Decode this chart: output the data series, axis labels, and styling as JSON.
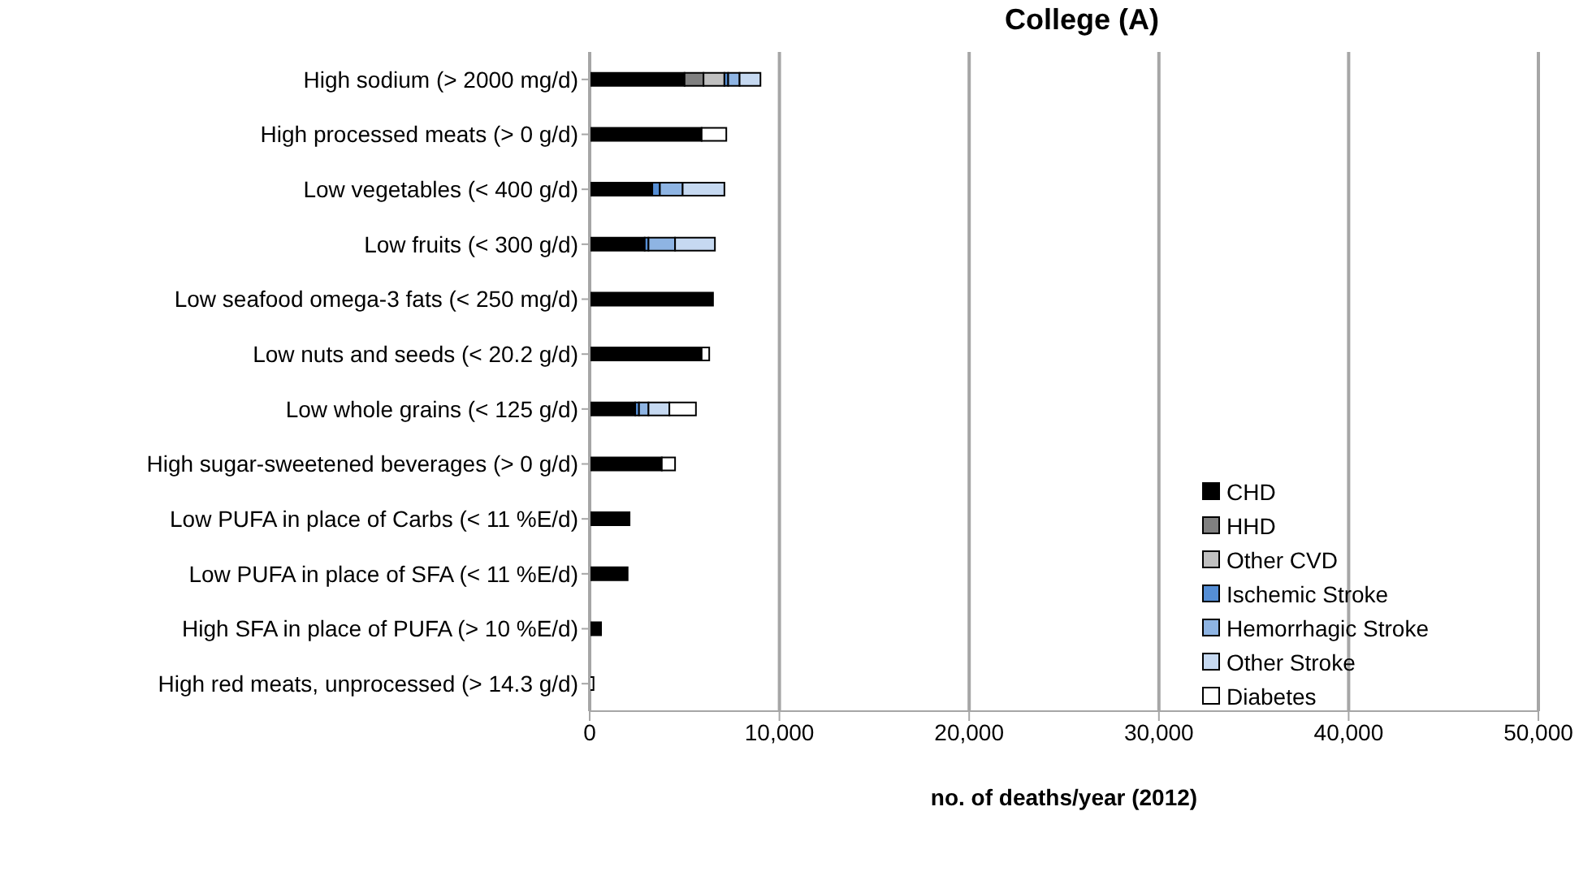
{
  "chart_data": {
    "type": "bar",
    "orientation": "horizontal",
    "stacked": true,
    "title": "College (A)",
    "xlabel": "no. of deaths/year (2012)",
    "categories": [
      "High sodium (> 2000 mg/d)",
      "High processed meats (> 0 g/d)",
      "Low vegetables (< 400 g/d)",
      "Low fruits (< 300 g/d)",
      "Low seafood omega-3 fats (< 250 mg/d)",
      "Low nuts and seeds (< 20.2 g/d)",
      "Low whole grains (< 125 g/d)",
      "High sugar-sweetened beverages (> 0 g/d)",
      "Low PUFA in place of Carbs (< 11 %E/d)",
      "Low PUFA in place of SFA (< 11 %E/d)",
      "High SFA in place of PUFA (> 10 %E/d)",
      "High red meats, unprocessed (> 14.3 g/d)"
    ],
    "series": [
      {
        "name": "CHD",
        "color": "#000000",
        "values": [
          5000,
          5900,
          3300,
          2900,
          6500,
          5900,
          2400,
          3800,
          2100,
          2000,
          600,
          null
        ]
      },
      {
        "name": "HHD",
        "color": "#808080",
        "values": [
          1000,
          0,
          0,
          0,
          0,
          0,
          0,
          0,
          0,
          0,
          0,
          0
        ]
      },
      {
        "name": "Other CVD",
        "color": "#c0c0c0",
        "values": [
          1100,
          0,
          0,
          0,
          0,
          0,
          0,
          0,
          0,
          0,
          0,
          0
        ]
      },
      {
        "name": "Ischemic Stroke",
        "color": "#558ed5",
        "values": [
          200,
          0,
          400,
          200,
          0,
          0,
          200,
          0,
          0,
          0,
          0,
          0
        ]
      },
      {
        "name": "Hemorrhagic Stroke",
        "color": "#8eb4e3",
        "values": [
          600,
          0,
          1200,
          1400,
          0,
          0,
          500,
          0,
          0,
          0,
          0,
          0
        ]
      },
      {
        "name": "Other Stroke",
        "color": "#c6d9f1",
        "values": [
          1100,
          0,
          2200,
          2100,
          0,
          0,
          1100,
          0,
          0,
          0,
          0,
          0
        ]
      },
      {
        "name": "Diabetes",
        "color": "#ffffff",
        "values": [
          0,
          1300,
          0,
          0,
          0,
          400,
          1400,
          700,
          0,
          0,
          0,
          200
        ]
      }
    ],
    "xlim": [
      0,
      50000
    ],
    "xticks": [
      {
        "value": 0,
        "label": "0"
      },
      {
        "value": 10000,
        "label": "10,000"
      },
      {
        "value": 20000,
        "label": "20,000"
      },
      {
        "value": 30000,
        "label": "30,000"
      },
      {
        "value": 40000,
        "label": "40,000"
      },
      {
        "value": 50000,
        "label": "50,000"
      }
    ],
    "grid": "x",
    "legend": "bottom right"
  }
}
